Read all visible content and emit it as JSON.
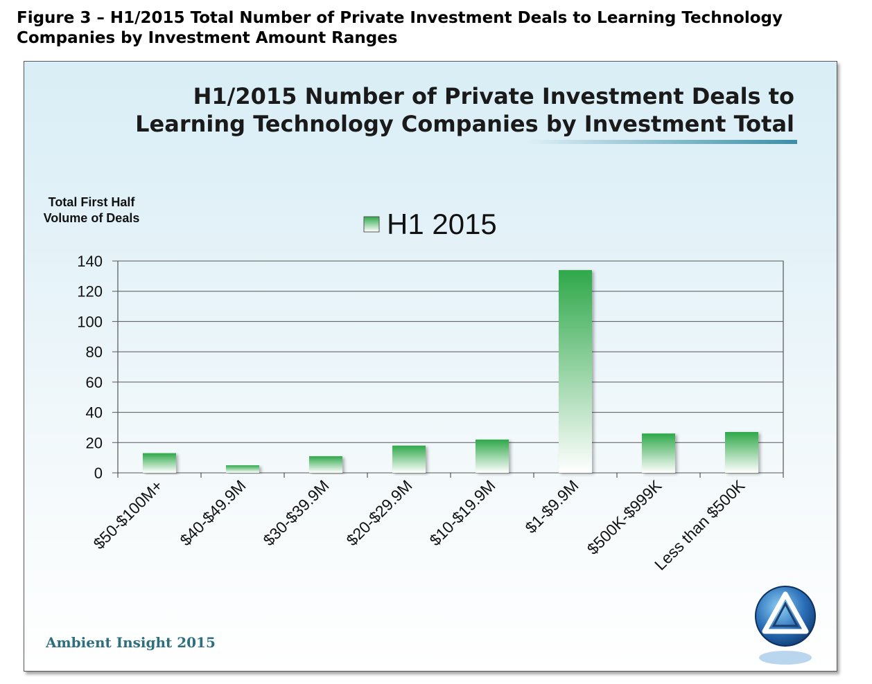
{
  "figure_caption": "Figure 3 – H1/2015 Total Number of Private Investment Deals to Learning Technology Companies by Investment Amount Ranges",
  "footer": "Ambient Insight 2015",
  "colors": {
    "bar_top": "#2fa84a",
    "bar_bottom": "#ffffff",
    "title_underline": "#3b8fa6",
    "footer_text": "#2e6f7d"
  },
  "logo_icon": "triangle-orb-logo-icon",
  "chart_data": {
    "type": "bar",
    "title_lines": [
      "H1/2015 Number of Private Investment Deals to",
      "Learning Technology Companies by Investment Total"
    ],
    "ylabel_lines": [
      "Total First Half",
      "Volume of Deals"
    ],
    "xlabel": "",
    "categories": [
      "$50-$100M+",
      "$40-$49.9M",
      "$30-$39.9M",
      "$20-$29.9M",
      "$10-$19.9M",
      "$1-$9.9M",
      "$500K-$999K",
      "Less than $500K"
    ],
    "series": [
      {
        "name": "H1 2015",
        "values": [
          13,
          5,
          11,
          18,
          22,
          134,
          26,
          27
        ]
      }
    ],
    "ylim": [
      0,
      140
    ],
    "yticks": [
      0,
      20,
      40,
      60,
      80,
      100,
      120,
      140
    ],
    "grid": true,
    "legend_position": "top-center"
  }
}
